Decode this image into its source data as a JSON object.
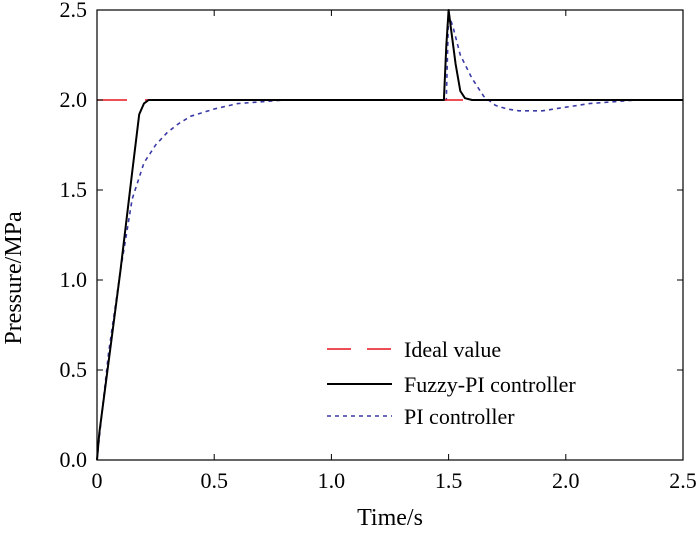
{
  "chart_data": {
    "type": "line",
    "title": "",
    "xlabel": "Time/s",
    "ylabel": "Pressure/MPa",
    "xlim": [
      0,
      2.5
    ],
    "ylim": [
      0,
      2.5
    ],
    "xticks": [
      "0",
      "0.5",
      "1.0",
      "1.5",
      "2.0",
      "2.5"
    ],
    "yticks": [
      "0.0",
      "0.5",
      "1.0",
      "1.5",
      "2.0",
      "2.5"
    ],
    "grid": false,
    "legend_position": "lower-right",
    "series": [
      {
        "name": "Ideal value",
        "color": "#e8141e",
        "style": "dashed",
        "x": [
          0,
          2.5
        ],
        "y": [
          2.0,
          2.0
        ]
      },
      {
        "name": "Fuzzy-PI controller",
        "color": "#000000",
        "style": "solid",
        "x": [
          0,
          0.01,
          0.05,
          0.1,
          0.15,
          0.18,
          0.2,
          0.22,
          0.25,
          0.5,
          1.0,
          1.48,
          1.49,
          1.5,
          1.51,
          1.53,
          1.55,
          1.57,
          1.6,
          1.7,
          2.0,
          2.5
        ],
        "y": [
          0,
          0.15,
          0.55,
          1.05,
          1.6,
          1.92,
          1.98,
          2.0,
          2.0,
          2.0,
          2.0,
          2.0,
          2.3,
          2.5,
          2.4,
          2.2,
          2.05,
          2.01,
          2.0,
          2.0,
          2.0,
          2.0
        ]
      },
      {
        "name": "PI controller",
        "color": "#3a3aa6",
        "style": "dotted",
        "x": [
          0,
          0.02,
          0.05,
          0.1,
          0.15,
          0.2,
          0.25,
          0.3,
          0.35,
          0.4,
          0.5,
          0.6,
          0.7,
          0.8,
          1.0,
          1.2,
          1.4,
          1.49,
          1.5,
          1.52,
          1.55,
          1.6,
          1.65,
          1.7,
          1.75,
          1.8,
          1.85,
          1.9,
          2.0,
          2.1,
          2.2,
          2.3,
          2.5
        ],
        "y": [
          0,
          0.25,
          0.6,
          1.05,
          1.45,
          1.65,
          1.75,
          1.82,
          1.87,
          1.91,
          1.95,
          1.98,
          1.99,
          2.0,
          2.0,
          2.0,
          2.0,
          2.0,
          2.48,
          2.4,
          2.25,
          2.12,
          2.02,
          1.97,
          1.95,
          1.94,
          1.94,
          1.94,
          1.96,
          1.98,
          1.99,
          2.0,
          2.0
        ]
      }
    ]
  }
}
